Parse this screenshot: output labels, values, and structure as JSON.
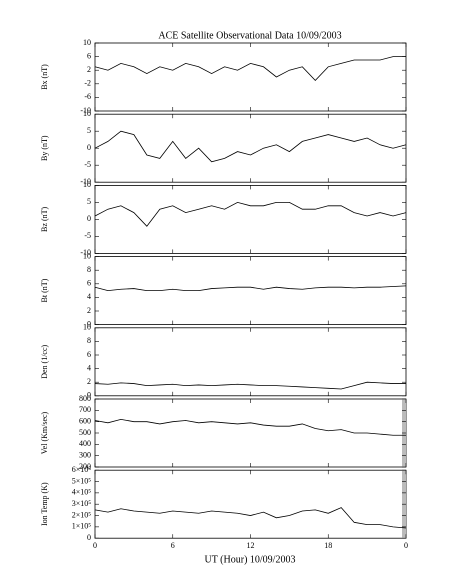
{
  "chart_data": [
    {
      "type": "line",
      "title": "ACE Satellite Observational Data   10/09/2003",
      "ylabel": "Bx (nT)",
      "x": [
        0,
        1,
        2,
        3,
        4,
        5,
        6,
        7,
        8,
        9,
        10,
        11,
        12,
        13,
        14,
        15,
        16,
        17,
        18,
        19,
        20,
        21,
        22,
        23,
        24
      ],
      "values": [
        3,
        2,
        4,
        3,
        1,
        3,
        2,
        4,
        3,
        1,
        3,
        2,
        4,
        3,
        0,
        2,
        3,
        -1,
        3,
        4,
        5,
        5,
        5,
        6,
        6
      ],
      "ylim": [
        -10,
        10
      ],
      "yticks": [
        -10,
        -6,
        -2,
        2,
        6,
        10
      ]
    },
    {
      "type": "line",
      "ylabel": "By (nT)",
      "x": [
        0,
        1,
        2,
        3,
        4,
        5,
        6,
        7,
        8,
        9,
        10,
        11,
        12,
        13,
        14,
        15,
        16,
        17,
        18,
        19,
        20,
        21,
        22,
        23,
        24
      ],
      "values": [
        0,
        2,
        5,
        4,
        -2,
        -3,
        2,
        -3,
        0,
        -4,
        -3,
        -1,
        -2,
        0,
        1,
        -1,
        2,
        3,
        4,
        3,
        2,
        3,
        1,
        0,
        1
      ],
      "ylim": [
        -10,
        10
      ],
      "yticks": [
        -10,
        -5,
        0,
        5,
        10
      ]
    },
    {
      "type": "line",
      "ylabel": "Bz (nT)",
      "x": [
        0,
        1,
        2,
        3,
        4,
        5,
        6,
        7,
        8,
        9,
        10,
        11,
        12,
        13,
        14,
        15,
        16,
        17,
        18,
        19,
        20,
        21,
        22,
        23,
        24
      ],
      "values": [
        1,
        3,
        4,
        2,
        -2,
        3,
        4,
        2,
        3,
        4,
        3,
        5,
        4,
        4,
        5,
        5,
        3,
        3,
        4,
        4,
        2,
        1,
        2,
        1,
        2
      ],
      "ylim": [
        -10,
        10
      ],
      "yticks": [
        -10,
        -5,
        0,
        5,
        10
      ]
    },
    {
      "type": "line",
      "ylabel": "Bt (nT)",
      "x": [
        0,
        1,
        2,
        3,
        4,
        5,
        6,
        7,
        8,
        9,
        10,
        11,
        12,
        13,
        14,
        15,
        16,
        17,
        18,
        19,
        20,
        21,
        22,
        23,
        24
      ],
      "values": [
        5.5,
        5,
        5.2,
        5.3,
        5,
        5,
        5.2,
        5,
        5,
        5.3,
        5.4,
        5.5,
        5.5,
        5.2,
        5.5,
        5.3,
        5.2,
        5.4,
        5.5,
        5.5,
        5.4,
        5.5,
        5.5,
        5.6,
        5.7
      ],
      "ylim": [
        0,
        10
      ],
      "yticks": [
        0,
        2,
        4,
        6,
        8,
        10
      ]
    },
    {
      "type": "line",
      "ylabel": "Den (1/cc)",
      "x": [
        0,
        1,
        2,
        3,
        4,
        5,
        6,
        7,
        8,
        9,
        10,
        11,
        12,
        13,
        14,
        15,
        16,
        17,
        18,
        19,
        20,
        21,
        22,
        23,
        24
      ],
      "values": [
        1.8,
        1.7,
        1.9,
        1.8,
        1.5,
        1.6,
        1.7,
        1.5,
        1.6,
        1.5,
        1.6,
        1.7,
        1.6,
        1.5,
        1.5,
        1.4,
        1.3,
        1.2,
        1.1,
        1.0,
        1.5,
        2.0,
        1.9,
        1.8,
        1.8
      ],
      "ylim": [
        0,
        10
      ],
      "yticks": [
        0,
        2,
        4,
        6,
        8,
        10
      ]
    },
    {
      "type": "line",
      "ylabel": "Vel (Km/sec)",
      "x": [
        0,
        1,
        2,
        3,
        4,
        5,
        6,
        7,
        8,
        9,
        10,
        11,
        12,
        13,
        14,
        15,
        16,
        17,
        18,
        19,
        20,
        21,
        22,
        23,
        24
      ],
      "values": [
        610,
        590,
        620,
        600,
        600,
        580,
        600,
        610,
        590,
        600,
        590,
        580,
        590,
        570,
        560,
        560,
        580,
        540,
        520,
        530,
        500,
        500,
        490,
        480,
        480
      ],
      "ylim": [
        200,
        800
      ],
      "yticks": [
        200,
        300,
        400,
        500,
        600,
        700,
        800
      ]
    },
    {
      "type": "line",
      "ylabel": "Ion Temp (K)",
      "xlabel": "UT (Hour)   10/09/2003",
      "x": [
        0,
        1,
        2,
        3,
        4,
        5,
        6,
        7,
        8,
        9,
        10,
        11,
        12,
        13,
        14,
        15,
        16,
        17,
        18,
        19,
        20,
        21,
        22,
        23,
        24
      ],
      "values": [
        250000,
        230000,
        260000,
        240000,
        230000,
        220000,
        240000,
        230000,
        220000,
        240000,
        230000,
        220000,
        200000,
        230000,
        180000,
        200000,
        240000,
        250000,
        220000,
        270000,
        140000,
        120000,
        120000,
        100000,
        90000
      ],
      "ylim": [
        0,
        600000
      ],
      "yticks": [
        0,
        {
          "value": 100000,
          "label": "1×10⁵"
        },
        {
          "value": 200000,
          "label": "2×10⁵"
        },
        {
          "value": 300000,
          "label": "3×10⁵"
        },
        {
          "value": 400000,
          "label": "4×10⁵"
        },
        {
          "value": 500000,
          "label": "5×10⁵"
        },
        {
          "value": 600000,
          "label": "6×10⁵"
        }
      ],
      "xlim": [
        0,
        24
      ],
      "xticks": [
        0,
        6,
        12,
        18,
        {
          "value": 24,
          "label": "0"
        }
      ]
    }
  ]
}
